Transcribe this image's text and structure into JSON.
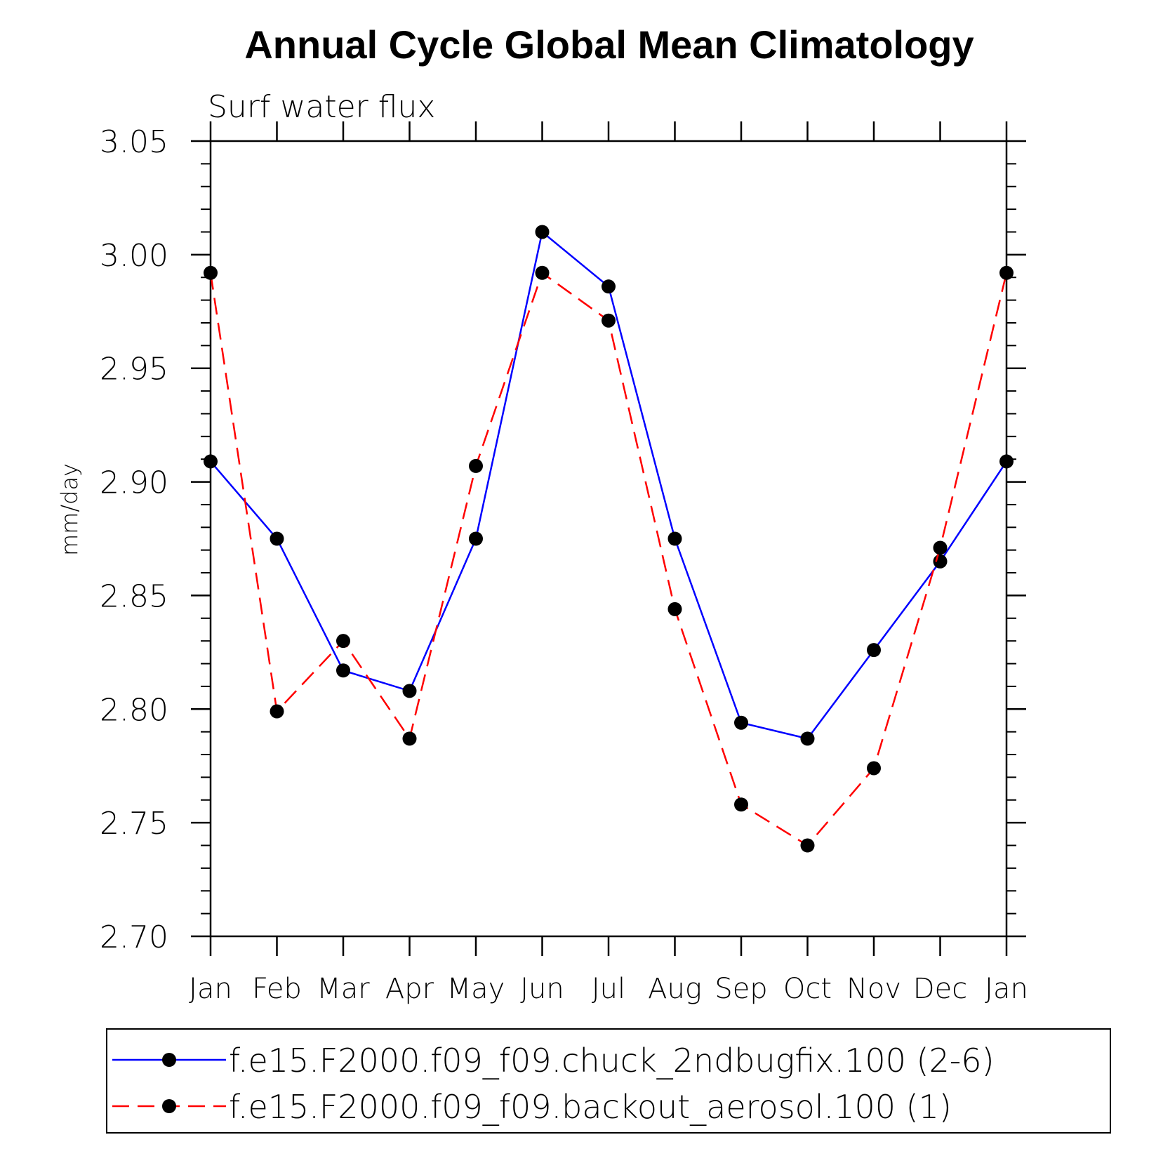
{
  "chart_data": {
    "type": "line",
    "title": "Annual Cycle Global Mean Climatology",
    "subtitle": "Surf water flux",
    "xlabel": "",
    "ylabel": "mm/day",
    "categories": [
      "Jan",
      "Feb",
      "Mar",
      "Apr",
      "May",
      "Jun",
      "Jul",
      "Aug",
      "Sep",
      "Oct",
      "Nov",
      "Dec",
      "Jan"
    ],
    "ylim": [
      2.7,
      3.05
    ],
    "yticks": [
      "2.70",
      "2.75",
      "2.80",
      "2.85",
      "2.90",
      "2.95",
      "3.00",
      "3.05"
    ],
    "grid": false,
    "legend_position": "bottom",
    "series": [
      {
        "name": "f.e15.F2000.f09_f09.chuck_2ndbugfix.100 (2-6)",
        "color": "#0000ff",
        "dash": "solid",
        "marker": "filled-circle",
        "values": [
          2.909,
          2.875,
          2.817,
          2.808,
          2.875,
          3.01,
          2.986,
          2.875,
          2.794,
          2.787,
          2.826,
          2.865,
          2.909
        ]
      },
      {
        "name": "f.e15.F2000.f09_f09.backout_aerosol.100 (1)",
        "color": "#ff0000",
        "dash": "dashed",
        "marker": "filled-circle",
        "values": [
          2.992,
          2.799,
          2.83,
          2.787,
          2.907,
          2.992,
          2.971,
          2.844,
          2.758,
          2.74,
          2.774,
          2.871,
          2.992
        ]
      }
    ]
  }
}
